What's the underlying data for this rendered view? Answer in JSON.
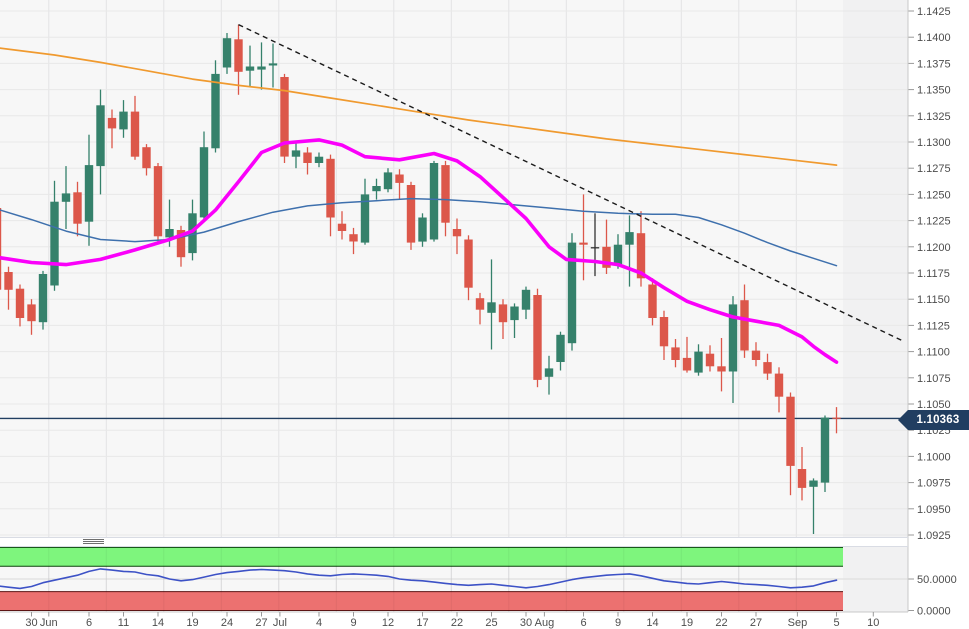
{
  "chart_data": {
    "type": "candlestick",
    "description": "Daily FX candlestick chart with three moving averages, descending dashed trendline, last-price line and an oscillator sub-panel",
    "hline": {
      "price": 1.10363,
      "label": "1.10363"
    },
    "ylim_main": [
      1.0925,
      1.1425
    ],
    "y_ticks_main": [
      "1.1425",
      "1.1400",
      "1.1375",
      "1.1350",
      "1.1325",
      "1.1300",
      "1.1275",
      "1.1250",
      "1.1225",
      "1.1200",
      "1.1175",
      "1.1150",
      "1.1125",
      "1.1100",
      "1.1075",
      "1.1050",
      "1.1025",
      "1.1000",
      "1.0975",
      "1.0950",
      "1.0925"
    ],
    "x_ticks": [
      [
        "30",
        3
      ],
      [
        "Jun",
        4.5
      ],
      [
        "6",
        8
      ],
      [
        "11",
        11
      ],
      [
        "14",
        14
      ],
      [
        "19",
        17
      ],
      [
        "24",
        20
      ],
      [
        "27",
        23
      ],
      [
        "Jul",
        24.6
      ],
      [
        "4",
        28
      ],
      [
        "9",
        31
      ],
      [
        "12",
        34
      ],
      [
        "17",
        37
      ],
      [
        "22",
        40
      ],
      [
        "25",
        43
      ],
      [
        "30",
        46
      ],
      [
        "Aug",
        47.6
      ],
      [
        "6",
        51
      ],
      [
        "9",
        54
      ],
      [
        "14",
        57
      ],
      [
        "19",
        60
      ],
      [
        "22",
        63
      ],
      [
        "27",
        66
      ],
      [
        "Sep",
        69.6
      ],
      [
        "5",
        73
      ],
      [
        "10",
        76.2
      ]
    ],
    "vgrid_indices": [
      5,
      10,
      15,
      20,
      25,
      30,
      35,
      40,
      45,
      50,
      55,
      60,
      65,
      70
    ],
    "candles": [
      [
        1.1237,
        1.1241,
        1.1155,
        1.1159
      ],
      [
        1.1176,
        1.1181,
        1.114,
        1.1159
      ],
      [
        1.116,
        1.1164,
        1.1124,
        1.1132
      ],
      [
        1.1145,
        1.115,
        1.1116,
        1.1129
      ],
      [
        1.1128,
        1.1177,
        1.1121,
        1.1174
      ],
      [
        1.1163,
        1.1263,
        1.1158,
        1.1243
      ],
      [
        1.1243,
        1.1277,
        1.1217,
        1.1251
      ],
      [
        1.1252,
        1.1262,
        1.121,
        1.1222
      ],
      [
        1.1224,
        1.1307,
        1.1201,
        1.1278
      ],
      [
        1.1277,
        1.135,
        1.125,
        1.1335
      ],
      [
        1.1323,
        1.1331,
        1.1294,
        1.1313
      ],
      [
        1.1312,
        1.134,
        1.1304,
        1.1329
      ],
      [
        1.1329,
        1.1344,
        1.1283,
        1.1286
      ],
      [
        1.1295,
        1.1298,
        1.1268,
        1.1275
      ],
      [
        1.1277,
        1.128,
        1.1203,
        1.121
      ],
      [
        1.1209,
        1.1245,
        1.12,
        1.1217
      ],
      [
        1.1216,
        1.122,
        1.1181,
        1.119
      ],
      [
        1.1194,
        1.1245,
        1.1187,
        1.1232
      ],
      [
        1.1228,
        1.131,
        1.1226,
        1.1295
      ],
      [
        1.1294,
        1.1378,
        1.129,
        1.1365
      ],
      [
        1.1371,
        1.1404,
        1.1365,
        1.1399
      ],
      [
        1.1398,
        1.1412,
        1.1345,
        1.1367
      ],
      [
        1.1368,
        1.1392,
        1.1352,
        1.1372
      ],
      [
        1.1369,
        1.1395,
        1.135,
        1.1372
      ],
      [
        1.1373,
        1.1394,
        1.1352,
        1.1375
      ],
      [
        1.1362,
        1.1365,
        1.128,
        1.1286
      ],
      [
        1.1286,
        1.13,
        1.1275,
        1.1292
      ],
      [
        1.129,
        1.1295,
        1.1269,
        1.128
      ],
      [
        1.128,
        1.129,
        1.1276,
        1.1286
      ],
      [
        1.1284,
        1.1288,
        1.121,
        1.1228
      ],
      [
        1.1222,
        1.1234,
        1.1207,
        1.1215
      ],
      [
        1.1212,
        1.1218,
        1.1193,
        1.1205
      ],
      [
        1.1204,
        1.1265,
        1.1202,
        1.125
      ],
      [
        1.1253,
        1.1265,
        1.1245,
        1.1258
      ],
      [
        1.1255,
        1.1275,
        1.1252,
        1.1271
      ],
      [
        1.1269,
        1.1274,
        1.1245,
        1.1261
      ],
      [
        1.1259,
        1.1262,
        1.1197,
        1.1204
      ],
      [
        1.1205,
        1.1232,
        1.12,
        1.1228
      ],
      [
        1.1207,
        1.1282,
        1.1205,
        1.128
      ],
      [
        1.1278,
        1.1282,
        1.121,
        1.1223
      ],
      [
        1.1217,
        1.1227,
        1.1193,
        1.121
      ],
      [
        1.1207,
        1.1211,
        1.1149,
        1.1161
      ],
      [
        1.1151,
        1.1156,
        1.1126,
        1.114
      ],
      [
        1.1137,
        1.1188,
        1.1102,
        1.1147
      ],
      [
        1.1145,
        1.115,
        1.1112,
        1.1128
      ],
      [
        1.113,
        1.1146,
        1.1113,
        1.1143
      ],
      [
        1.114,
        1.1162,
        1.1131,
        1.1159
      ],
      [
        1.1154,
        1.116,
        1.1066,
        1.1073
      ],
      [
        1.1076,
        1.1096,
        1.1059,
        1.1084
      ],
      [
        1.109,
        1.1119,
        1.1082,
        1.1116
      ],
      [
        1.1108,
        1.1213,
        1.1101,
        1.1204
      ],
      [
        1.1204,
        1.125,
        1.1168,
        1.1202
      ],
      [
        1.1199,
        1.1232,
        1.1172,
        1.1199,
        "k"
      ],
      [
        1.12,
        1.1226,
        1.1174,
        1.118
      ],
      [
        1.1183,
        1.1212,
        1.1179,
        1.1202
      ],
      [
        1.1202,
        1.123,
        1.1162,
        1.1214
      ],
      [
        1.1213,
        1.1234,
        1.1162,
        1.117
      ],
      [
        1.1164,
        1.117,
        1.1125,
        1.1132
      ],
      [
        1.1133,
        1.1139,
        1.1092,
        1.1105
      ],
      [
        1.1104,
        1.1112,
        1.1085,
        1.1092
      ],
      [
        1.1094,
        1.1114,
        1.108,
        1.1082
      ],
      [
        1.108,
        1.1107,
        1.1077,
        1.11
      ],
      [
        1.1098,
        1.1106,
        1.1081,
        1.1086
      ],
      [
        1.1086,
        1.1113,
        1.1062,
        1.1081
      ],
      [
        1.1081,
        1.1153,
        1.1051,
        1.1145
      ],
      [
        1.1149,
        1.1164,
        1.1094,
        1.1101
      ],
      [
        1.1101,
        1.1109,
        1.1086,
        1.1092
      ],
      [
        1.109,
        1.1098,
        1.1073,
        1.1079
      ],
      [
        1.1079,
        1.1085,
        1.1042,
        1.1057
      ],
      [
        1.1057,
        1.1061,
        1.0963,
        1.0991
      ],
      [
        1.0988,
        1.1009,
        1.0958,
        1.097
      ],
      [
        1.0971,
        1.0979,
        1.0926,
        1.0977
      ],
      [
        1.0975,
        1.1039,
        1.0966,
        1.1037
      ],
      [
        1.1037,
        1.1047,
        1.1022,
        1.10363
      ]
    ],
    "overlays": {
      "orange_ma": [
        [
          0,
          1.139
        ],
        [
          5,
          1.1383
        ],
        [
          9,
          1.1376
        ],
        [
          13,
          1.1368
        ],
        [
          17,
          1.136
        ],
        [
          21,
          1.1354
        ],
        [
          25,
          1.1349
        ],
        [
          29,
          1.1342
        ],
        [
          33,
          1.1335
        ],
        [
          37,
          1.1328
        ],
        [
          41,
          1.1321
        ],
        [
          45,
          1.1315
        ],
        [
          49,
          1.1309
        ],
        [
          53,
          1.1303
        ],
        [
          57,
          1.1298
        ],
        [
          61,
          1.1293
        ],
        [
          65,
          1.1288
        ],
        [
          69,
          1.1283
        ],
        [
          73,
          1.1278
        ]
      ],
      "blue_ma": [
        [
          0,
          1.1236
        ],
        [
          3,
          1.1226
        ],
        [
          6,
          1.1215
        ],
        [
          9,
          1.1207
        ],
        [
          12,
          1.1205
        ],
        [
          15,
          1.1207
        ],
        [
          18,
          1.1214
        ],
        [
          21,
          1.1224
        ],
        [
          24,
          1.1233
        ],
        [
          27,
          1.1239
        ],
        [
          30,
          1.1242
        ],
        [
          33,
          1.1244
        ],
        [
          36,
          1.1246
        ],
        [
          39,
          1.1245
        ],
        [
          42,
          1.1243
        ],
        [
          45,
          1.124
        ],
        [
          48,
          1.1237
        ],
        [
          51,
          1.1234
        ],
        [
          54,
          1.1232
        ],
        [
          57,
          1.1231
        ],
        [
          59,
          1.1231
        ],
        [
          61,
          1.1228
        ],
        [
          63,
          1.1221
        ],
        [
          65,
          1.1213
        ],
        [
          67,
          1.1204
        ],
        [
          69,
          1.1196
        ],
        [
          71,
          1.1189
        ],
        [
          73,
          1.1182
        ]
      ],
      "magenta_ma": [
        [
          0,
          1.119
        ],
        [
          3,
          1.1185
        ],
        [
          6,
          1.1183
        ],
        [
          9,
          1.1188
        ],
        [
          12,
          1.1197
        ],
        [
          15,
          1.1207
        ],
        [
          17,
          1.1215
        ],
        [
          19,
          1.1235
        ],
        [
          21,
          1.1262
        ],
        [
          23,
          1.129
        ],
        [
          25,
          1.1299
        ],
        [
          28,
          1.1302
        ],
        [
          30,
          1.1297
        ],
        [
          32,
          1.1286
        ],
        [
          35,
          1.1283
        ],
        [
          38,
          1.1289
        ],
        [
          40,
          1.1282
        ],
        [
          42,
          1.1267
        ],
        [
          44,
          1.1247
        ],
        [
          46,
          1.1227
        ],
        [
          48,
          1.12
        ],
        [
          49.5,
          1.1188
        ],
        [
          52,
          1.1186
        ],
        [
          54,
          1.1183
        ],
        [
          56,
          1.1175
        ],
        [
          58,
          1.1161
        ],
        [
          60,
          1.1148
        ],
        [
          62,
          1.114
        ],
        [
          64,
          1.1133
        ],
        [
          66,
          1.1129
        ],
        [
          68,
          1.1125
        ],
        [
          70,
          1.1114
        ],
        [
          71,
          1.1105
        ],
        [
          72,
          1.1097
        ],
        [
          73,
          1.109
        ]
      ],
      "trendline": {
        "from": [
          21,
          1.1412
        ],
        "to": [
          78.8,
          1.111
        ],
        "style": "dashed"
      }
    },
    "lower_panel": {
      "range": [
        0,
        100
      ],
      "y_ticks": [
        {
          "label": "50.0000",
          "value": 50
        },
        {
          "label": "0.0000",
          "value": 0
        }
      ],
      "bands": [
        {
          "from": 70,
          "to": 100,
          "role": "overbought"
        },
        {
          "from": 0,
          "to": 30,
          "role": "oversold"
        }
      ],
      "values": [
        39,
        37,
        35,
        38,
        44,
        48,
        52,
        56,
        62,
        66,
        64,
        62,
        61,
        57,
        55,
        50,
        47,
        49,
        53,
        57,
        60,
        62,
        64,
        65,
        64,
        63,
        61,
        58,
        56,
        55,
        57,
        58,
        57,
        56,
        54,
        50,
        48,
        47,
        45,
        43,
        41,
        40,
        41,
        42,
        40,
        38,
        36,
        38,
        41,
        45,
        49,
        52,
        54,
        56,
        57,
        58,
        55,
        51,
        47,
        45,
        43,
        42,
        44,
        46,
        44,
        42,
        41,
        40,
        38,
        36,
        37,
        39,
        44,
        48
      ]
    },
    "colors": {
      "up": "#35816b",
      "down": "#dc574a",
      "neutral": "#333333",
      "orange_ma": "#f09a2f",
      "blue_ma": "#3e70ad",
      "magenta_ma": "#fa00fa",
      "trendline": "#1a1a1a",
      "last_price": "#213e61",
      "band_green": "#7ef57d",
      "band_green_border": "#0a420a",
      "band_red": "#ec7170",
      "band_red_border": "#5c1414",
      "indicator_line": "#3d52c6",
      "plot_bg": "#f7f7f7",
      "future_bg": "#f1f1f2",
      "grid_h": "#e8e8e8",
      "grid_v": "#e3e3e5",
      "axis_line": "#c8c8c8",
      "tick": "#999999",
      "label_text": "#4d4d4d"
    }
  }
}
